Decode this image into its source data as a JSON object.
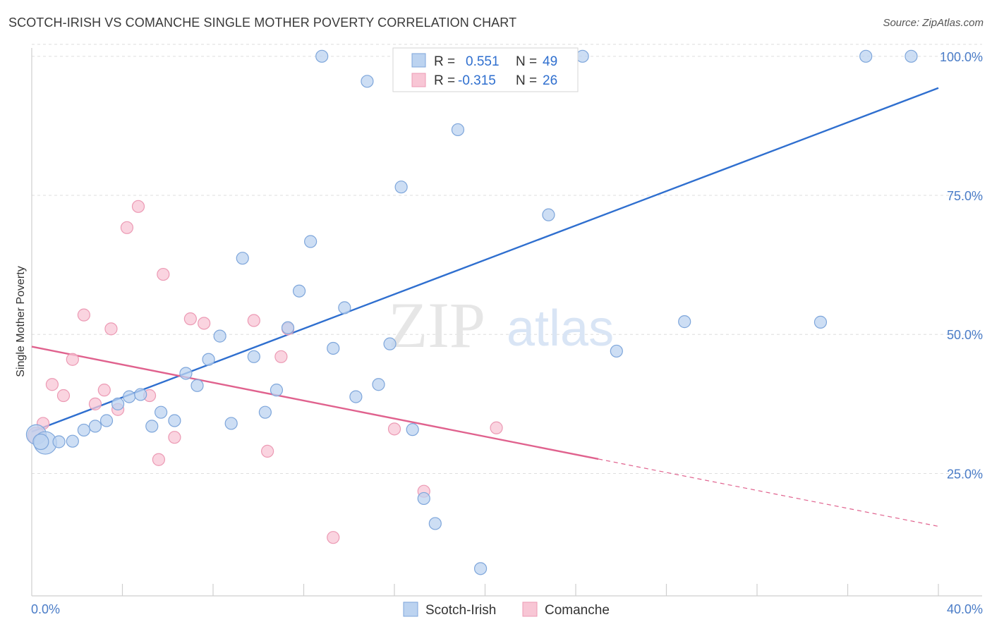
{
  "title": "SCOTCH-IRISH VS COMANCHE SINGLE MOTHER POVERTY CORRELATION CHART",
  "source": "Source: ZipAtlas.com",
  "watermark": {
    "zip": "ZIP",
    "atlas": "atlas"
  },
  "colors": {
    "blue": "#2f6fcf",
    "blue_fill": "#bcd3f0",
    "blue_stroke": "#7ea6db",
    "pink": "#e0628e",
    "pink_fill": "#f8c6d5",
    "pink_stroke": "#ec9ab4",
    "tick": "#4a7cc7"
  },
  "legend": {
    "rows": [
      {
        "r_label": "R =",
        "r_value": "0.551",
        "n_label": "N =",
        "n_value": "49"
      },
      {
        "r_label": "R =",
        "r_value": "-0.315",
        "n_label": "N =",
        "n_value": "26"
      }
    ]
  },
  "bottom_legend": {
    "a": "Scotch-Irish",
    "b": "Comanche"
  },
  "chart_data": {
    "type": "scatter",
    "title": "SCOTCH-IRISH VS COMANCHE SINGLE MOTHER POVERTY CORRELATION CHART",
    "xlabel": "",
    "ylabel": "Single Mother Poverty",
    "xlim": [
      0,
      40
    ],
    "ylim": [
      3,
      101.5
    ],
    "x_tick_labels": [
      "0.0%",
      "40.0%"
    ],
    "y_ticks": [
      25,
      50,
      75,
      100
    ],
    "y_tick_labels": [
      "25.0%",
      "50.0%",
      "75.0%",
      "100.0%"
    ],
    "grid": true,
    "series": [
      {
        "name": "Scotch-Irish",
        "color": "#2f6fcf",
        "points": [
          [
            0.2,
            32.0
          ],
          [
            0.6,
            30.5
          ],
          [
            1.2,
            30.7
          ],
          [
            1.8,
            30.8
          ],
          [
            2.3,
            32.8
          ],
          [
            2.8,
            33.5
          ],
          [
            3.3,
            34.5
          ],
          [
            3.8,
            37.5
          ],
          [
            4.3,
            38.8
          ],
          [
            4.8,
            39.2
          ],
          [
            5.3,
            33.5
          ],
          [
            5.7,
            36.0
          ],
          [
            6.3,
            34.5
          ],
          [
            6.8,
            43.0
          ],
          [
            7.3,
            40.8
          ],
          [
            7.8,
            45.5
          ],
          [
            8.3,
            49.7
          ],
          [
            8.8,
            34.0
          ],
          [
            9.3,
            63.7
          ],
          [
            9.8,
            46.0
          ],
          [
            10.3,
            36.0
          ],
          [
            10.8,
            40.0
          ],
          [
            11.3,
            51.2
          ],
          [
            11.8,
            57.8
          ],
          [
            12.3,
            66.7
          ],
          [
            12.8,
            100.0
          ],
          [
            13.3,
            47.5
          ],
          [
            13.8,
            54.8
          ],
          [
            14.3,
            38.8
          ],
          [
            14.8,
            95.5
          ],
          [
            15.3,
            41.0
          ],
          [
            15.8,
            48.3
          ],
          [
            16.3,
            76.5
          ],
          [
            16.8,
            32.9
          ],
          [
            17.3,
            20.5
          ],
          [
            17.8,
            16.0
          ],
          [
            18.3,
            100.0
          ],
          [
            18.8,
            86.8
          ],
          [
            19.8,
            7.9
          ],
          [
            20.3,
            100.0
          ],
          [
            21.3,
            100.0
          ],
          [
            22.8,
            71.5
          ],
          [
            24.3,
            100.0
          ],
          [
            25.8,
            47.0
          ],
          [
            28.8,
            52.3
          ],
          [
            34.8,
            52.2
          ],
          [
            36.8,
            100.0
          ],
          [
            38.8,
            100.0
          ],
          [
            0.4,
            30.7
          ]
        ],
        "trend": {
          "x0": 0.0,
          "y0": 32.5,
          "x1": 40.0,
          "y1": 94.3
        }
      },
      {
        "name": "Comanche",
        "color": "#e0628e",
        "points": [
          [
            0.2,
            31.8
          ],
          [
            0.5,
            34.0
          ],
          [
            0.9,
            41.0
          ],
          [
            1.4,
            39.0
          ],
          [
            1.8,
            45.5
          ],
          [
            2.3,
            53.5
          ],
          [
            2.8,
            37.5
          ],
          [
            3.2,
            40.0
          ],
          [
            3.5,
            51.0
          ],
          [
            3.8,
            36.5
          ],
          [
            4.2,
            69.2
          ],
          [
            4.7,
            73.0
          ],
          [
            5.2,
            39.0
          ],
          [
            5.6,
            27.5
          ],
          [
            5.8,
            60.8
          ],
          [
            6.3,
            31.5
          ],
          [
            7.0,
            52.8
          ],
          [
            7.6,
            52.0
          ],
          [
            9.8,
            52.5
          ],
          [
            10.4,
            29.0
          ],
          [
            11.0,
            46.0
          ],
          [
            11.3,
            51.0
          ],
          [
            13.3,
            13.5
          ],
          [
            16.0,
            33.0
          ],
          [
            17.3,
            21.8
          ],
          [
            20.5,
            33.2
          ]
        ],
        "trend": {
          "x0": 0.0,
          "y0": 47.8,
          "x1": 25.0,
          "y1": 27.6,
          "dashed_to_x": 40.0,
          "dashed_to_y": 15.5
        }
      }
    ]
  }
}
